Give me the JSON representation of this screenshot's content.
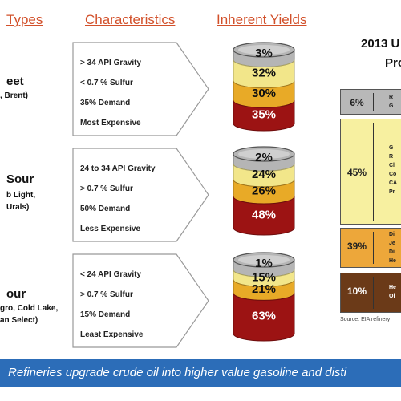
{
  "headers": {
    "types": "Types",
    "characteristics": "Characteristics",
    "yields": "Inherent Yields"
  },
  "crudes": [
    {
      "name": "eet",
      "sub": [
        ", Brent)"
      ],
      "characteristics": [
        "> 34 API Gravity",
        "< 0.7 % Sulfur",
        "35% Demand",
        "Most Expensive"
      ],
      "yields": [
        "3%",
        "32%",
        "30%",
        "35%"
      ]
    },
    {
      "name": "Sour",
      "sub": [
        "b Light,",
        "Urals)"
      ],
      "characteristics": [
        "24 to 34 API Gravity",
        "> 0.7 % Sulfur",
        "50% Demand",
        "Less Expensive"
      ],
      "yields": [
        "2%",
        "24%",
        "26%",
        "48%"
      ]
    },
    {
      "name": "our",
      "sub": [
        "gro, Cold Lake,",
        "an Select)"
      ],
      "characteristics": [
        "< 24 API Gravity",
        "> 0.7 % Sulfur",
        "15% Demand",
        "Least Expensive"
      ],
      "yields": [
        "1%",
        "15%",
        "21%",
        "63%"
      ]
    }
  ],
  "yield_levels": [
    [
      0.03,
      0.32,
      0.3,
      0.35
    ],
    [
      0.02,
      0.24,
      0.26,
      0.48
    ],
    [
      0.01,
      0.15,
      0.21,
      0.63
    ]
  ],
  "colors": {
    "header": "#d2502a",
    "gray": "#b5b5b5",
    "yellow": "#f2e68a",
    "orange": "#e8aa27",
    "red": "#9c1313",
    "banner": "#2c6db8"
  },
  "products_panel": {
    "title_year": "2013 U",
    "title_word": "Pro",
    "boxes": [
      {
        "pct": "6%",
        "text": [
          "R",
          "G"
        ],
        "color": "#b8b8b8",
        "text_color": "#222222"
      },
      {
        "pct": "45%",
        "text": [
          "G",
          "R",
          "Cl",
          "Co",
          "CA",
          "Pr"
        ],
        "color": "#f7f0a0",
        "text_color": "#222222"
      },
      {
        "pct": "39%",
        "text": [
          "Di",
          "Je",
          "Di",
          "He"
        ],
        "color": "#eda73a",
        "text_color": "#222222"
      },
      {
        "pct": "10%",
        "text": [
          "He",
          "Oi"
        ],
        "color": "#6b3a18",
        "text_color": "#ffffff"
      }
    ],
    "source": "Source: EIA refinery"
  },
  "banner": "Refineries upgrade crude oil into higher value gasoline and disti"
}
